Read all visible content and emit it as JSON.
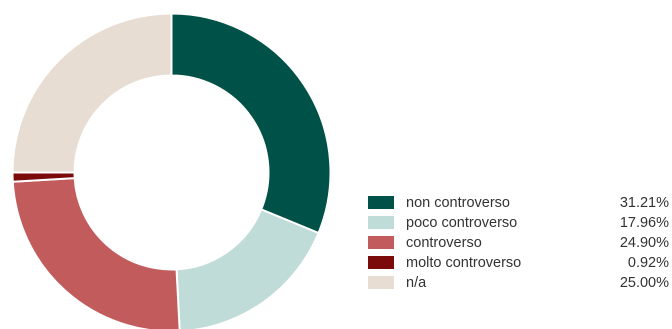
{
  "chart_data": {
    "type": "pie",
    "donut": true,
    "legend_position": "bottom-right",
    "categories": [
      "non controverso",
      "poco controverso",
      "controverso",
      "molto controverso",
      "n/a"
    ],
    "values": [
      31.21,
      17.96,
      24.9,
      0.92,
      25.0
    ],
    "value_labels": [
      "31.21%",
      "17.96%",
      "24.90%",
      "0.92%",
      "25.00%"
    ],
    "colors": [
      "#005147",
      "#bfdcd8",
      "#c25c5c",
      "#7b0b0b",
      "#e8ddd3"
    ]
  }
}
